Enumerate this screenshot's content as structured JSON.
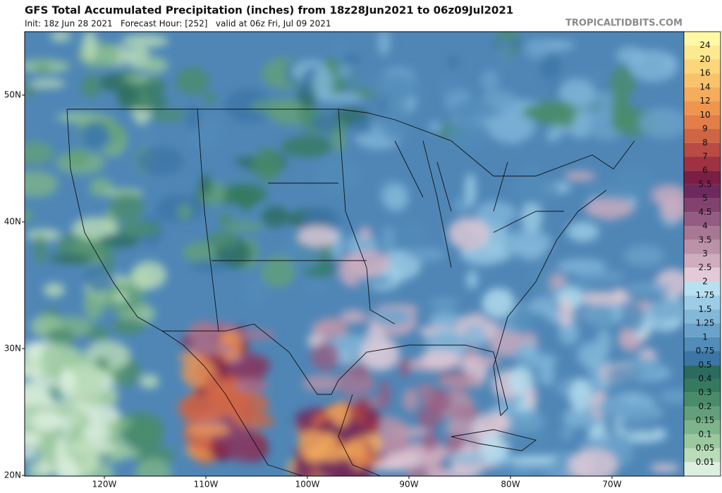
{
  "header": {
    "title": "GFS Total Accumulated Precipitation (inches) from 18z28Jun2021 to 06z09Jul2021",
    "subtitle": "Init: 18z Jun 28 2021   Forecast Hour: [252]   valid at 06z Fri, Jul 09 2021",
    "site": "TROPICALTIDBITS.COM"
  },
  "map": {
    "lat_labels": [
      "50N",
      "40N",
      "30N",
      "20N"
    ],
    "lon_labels": [
      "120W",
      "110W",
      "100W",
      "90W",
      "80W",
      "70W"
    ]
  },
  "legend": {
    "top_color": "#fff9a6",
    "levels": [
      "24",
      "20",
      "16",
      "14",
      "12",
      "10",
      "9",
      "8",
      "7",
      "6",
      "5.5",
      "5",
      "4.5",
      "4",
      "3.5",
      "3",
      "2.5",
      "2",
      "1.75",
      "1.5",
      "1.25",
      "1",
      "0.75",
      "0.5",
      "0.4",
      "0.3",
      "0.2",
      "0.15",
      "0.1",
      "0.05",
      "0.01"
    ],
    "colors": [
      "#fde98f",
      "#fbd67a",
      "#f8c36a",
      "#f4ad5c",
      "#ee9550",
      "#e37d49",
      "#d06545",
      "#b94a44",
      "#9e3243",
      "#7c1e44",
      "#6e2a5e",
      "#81426f",
      "#945c82",
      "#a77794",
      "#bb92a8",
      "#cfadbf",
      "#e2cad6",
      "#b8e0f0",
      "#9dcde6",
      "#83b8d9",
      "#6aa2ca",
      "#528cb9",
      "#3c76a6",
      "#2b6a5e",
      "#357a5e",
      "#4a8c6a",
      "#63a079",
      "#7db48a",
      "#9bc89f",
      "#badcb8",
      "#dcefe0"
    ]
  }
}
